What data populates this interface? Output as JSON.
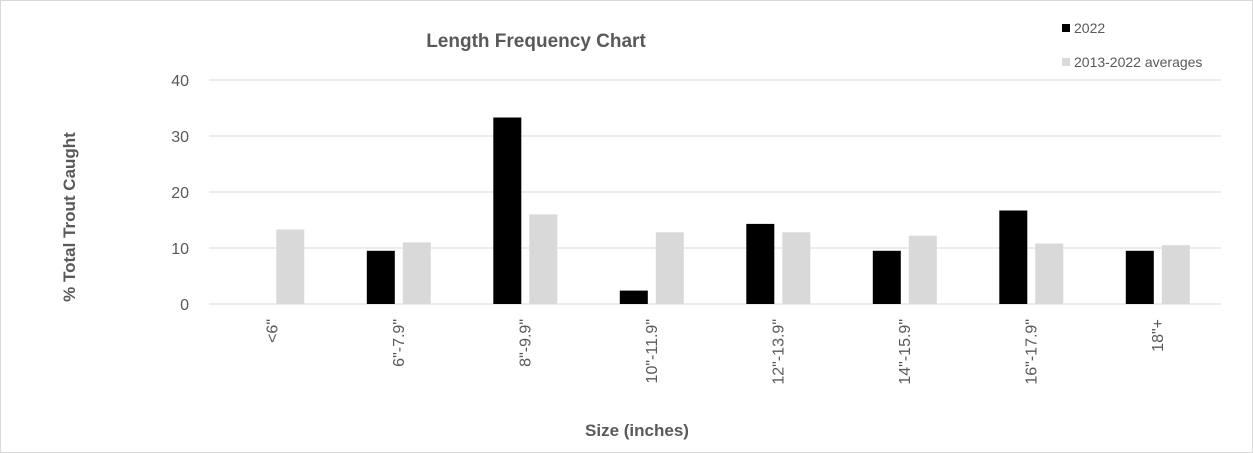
{
  "chart_data": {
    "type": "bar",
    "title": "Length Frequency Chart",
    "xlabel": "Size (inches)",
    "ylabel": "% Total Trout  Caught",
    "categories": [
      "<6\"",
      "6\"-7.9\"",
      "8\"-9.9\"",
      "10\"-11.9\"",
      "12\"-13.9\"",
      "14\"-15.9\"",
      "16\"-17.9\"",
      "18\"+"
    ],
    "series": [
      {
        "name": "2022",
        "color": "#000000",
        "values": [
          0,
          9.5,
          33.3,
          2.4,
          14.3,
          9.5,
          16.7,
          9.5
        ]
      },
      {
        "name": "2013-2022 averages",
        "color": "#d9d9d9",
        "values": [
          13.3,
          11.0,
          16.0,
          12.8,
          12.8,
          12.2,
          10.8,
          10.5
        ]
      }
    ],
    "ylim": [
      0,
      40
    ],
    "yticks": [
      0,
      10,
      20,
      30,
      40
    ],
    "grid": true,
    "legend_position": "top-right"
  }
}
